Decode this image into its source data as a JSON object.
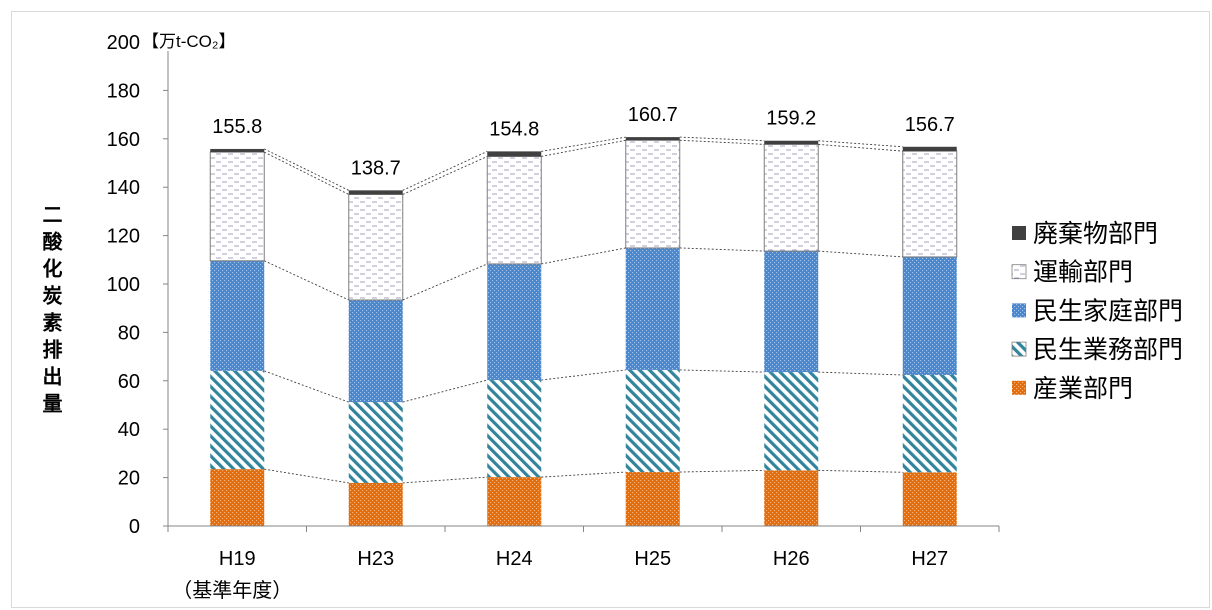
{
  "chart_data": {
    "type": "bar",
    "stacked": true,
    "unit_label": "【万t-CO₂】",
    "ylabel": "二酸化炭素排出量",
    "categories": [
      "H19",
      "H23",
      "H24",
      "H25",
      "H26",
      "H27"
    ],
    "category_notes": {
      "H19": "（基準年度）"
    },
    "ylim": [
      0,
      200
    ],
    "yticks": [
      0,
      20,
      40,
      60,
      80,
      100,
      120,
      140,
      160,
      180,
      200
    ],
    "series": [
      {
        "name": "産業部門",
        "color": "#E46C0A",
        "values": [
          23.5,
          17.8,
          20.2,
          22.3,
          23.0,
          22.2
        ]
      },
      {
        "name": "民生業務部門",
        "color": "#31849B",
        "values": [
          40.6,
          33.4,
          40.1,
          42.2,
          40.6,
          40.2
        ]
      },
      {
        "name": "民生家庭部門",
        "color": "#4B87CC",
        "values": [
          45.5,
          42.2,
          48.0,
          50.4,
          50.0,
          48.8
        ]
      },
      {
        "name": "運輸部門",
        "color": "#FFFFFF",
        "values": [
          44.9,
          43.6,
          44.4,
          44.5,
          44.1,
          43.7
        ]
      },
      {
        "name": "廃棄物部門",
        "color": "#404040",
        "values": [
          1.3,
          1.7,
          2.1,
          1.3,
          1.5,
          1.8
        ]
      }
    ],
    "totals": [
      155.8,
      138.7,
      154.8,
      160.7,
      159.2,
      156.7
    ],
    "legend": "right",
    "series_lines": true,
    "grid": false
  }
}
